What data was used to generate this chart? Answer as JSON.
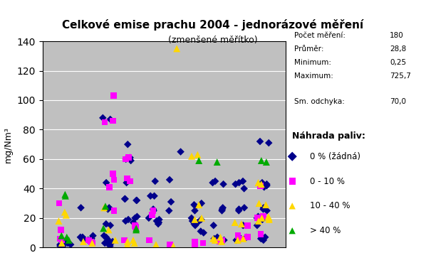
{
  "title": "Celkové emise prachu 2004 - jednorázové měření",
  "subtitle": "(zmenšené měřítko)",
  "ylabel": "mg/Nm³",
  "ylim": [
    0,
    140
  ],
  "yticks": [
    0,
    20,
    40,
    60,
    80,
    100,
    120,
    140
  ],
  "stats_text": "Počet měření:  180\nPrůměr:         28,8\nMinimum:        0,25\nMaximum:      725,7\n\nSm. odchyka:  70,0",
  "legend_title": "Náhrada paliv:",
  "legend_entries": [
    "0 % (žádná)",
    "0 - 10 %",
    "10 - 40 %",
    "> 40 %"
  ],
  "legend_colors": [
    "#00008B",
    "#FF00FF",
    "#FFD700",
    "#00AA00"
  ],
  "legend_markers": [
    "D",
    "s",
    "^",
    "^"
  ],
  "bg_color": "#C0C0C0",
  "plot_bg": "#C0C0C0",
  "outer_bg": "#FFFFFF",
  "series": {
    "blue": {
      "color": "#00008B",
      "marker": "D",
      "size": 6,
      "x": [
        1,
        1,
        1,
        1,
        1,
        1,
        2,
        2,
        2,
        2,
        2,
        2,
        2,
        2,
        2,
        2,
        3,
        3,
        3,
        3,
        3,
        3,
        3,
        3,
        3,
        3,
        3,
        3,
        3,
        3,
        3,
        4,
        4,
        4,
        4,
        4,
        4,
        4,
        4,
        4,
        4,
        4,
        4,
        4,
        4,
        5,
        5,
        5,
        5,
        5,
        5,
        5,
        5,
        5,
        5,
        6,
        6,
        6,
        6,
        7,
        7,
        7,
        7,
        7,
        7,
        7,
        7,
        7,
        7,
        7,
        7,
        8,
        8,
        8,
        8,
        8,
        8,
        8,
        8,
        8,
        8,
        9,
        9,
        9,
        9,
        9,
        9,
        9,
        9,
        9,
        9,
        9,
        10,
        10,
        10,
        10,
        10,
        10,
        10,
        10,
        10,
        10,
        10,
        10,
        10,
        10,
        10,
        10
      ],
      "y": [
        1,
        2,
        3,
        4,
        1,
        2,
        27,
        6,
        5,
        4,
        7,
        8,
        4,
        5,
        6,
        7,
        44,
        27,
        26,
        16,
        15,
        8,
        7,
        6,
        5,
        4,
        3,
        2,
        1,
        88,
        87,
        44,
        33,
        32,
        21,
        20,
        19,
        18,
        17,
        61,
        60,
        59,
        33,
        32,
        70,
        45,
        35,
        26,
        25,
        20,
        19,
        18,
        17,
        16,
        35,
        65,
        46,
        31,
        25,
        25,
        28,
        29,
        30,
        15,
        16,
        17,
        18,
        19,
        20,
        10,
        11,
        45,
        44,
        43,
        25,
        26,
        27,
        15,
        7,
        6,
        5,
        45,
        44,
        43,
        25,
        26,
        27,
        15,
        7,
        6,
        5,
        40,
        42,
        41,
        25,
        26,
        27,
        19,
        20,
        21,
        15,
        7,
        6,
        5,
        71,
        72,
        44,
        43
      ]
    },
    "magenta": {
      "color": "#FF00FF",
      "marker": "s",
      "size": 7,
      "x": [
        1,
        1,
        1,
        1,
        2,
        2,
        2,
        3,
        3,
        3,
        3,
        3,
        3,
        3,
        4,
        4,
        4,
        4,
        4,
        4,
        4,
        5,
        5,
        5,
        6,
        7,
        7,
        7,
        8,
        8,
        9,
        9,
        9,
        9,
        10,
        10,
        10,
        10
      ],
      "y": [
        12,
        30,
        5,
        6,
        3,
        4,
        5,
        103,
        86,
        85,
        46,
        41,
        50,
        25,
        61,
        60,
        47,
        45,
        15,
        14,
        5,
        25,
        22,
        5,
        2,
        2,
        3,
        4,
        4,
        5,
        6,
        7,
        15,
        8,
        21,
        9,
        42,
        20
      ]
    },
    "yellow": {
      "color": "#FFD700",
      "marker": "^",
      "size": 8,
      "x": [
        1,
        1,
        1,
        1,
        2,
        2,
        3,
        3,
        3,
        4,
        4,
        4,
        4,
        5,
        6,
        6,
        7,
        7,
        7,
        7,
        7,
        8,
        8,
        8,
        8,
        9,
        9,
        9,
        9,
        10,
        10,
        10,
        10,
        10,
        10,
        10,
        10,
        10
      ],
      "y": [
        22,
        24,
        18,
        3,
        3,
        4,
        27,
        12,
        5,
        4,
        5,
        3,
        2,
        2,
        1,
        135,
        29,
        63,
        62,
        20,
        19,
        5,
        6,
        7,
        4,
        17,
        16,
        5,
        6,
        30,
        29,
        20,
        19,
        18,
        43,
        44,
        20,
        21
      ]
    },
    "green": {
      "color": "#00AA00",
      "marker": "^",
      "size": 8,
      "x": [
        1,
        1,
        1,
        1,
        1,
        3,
        3,
        4,
        4,
        7,
        8,
        10,
        10
      ],
      "y": [
        8,
        7,
        5,
        35,
        36,
        28,
        13,
        12,
        13,
        59,
        58,
        59,
        58
      ]
    }
  }
}
